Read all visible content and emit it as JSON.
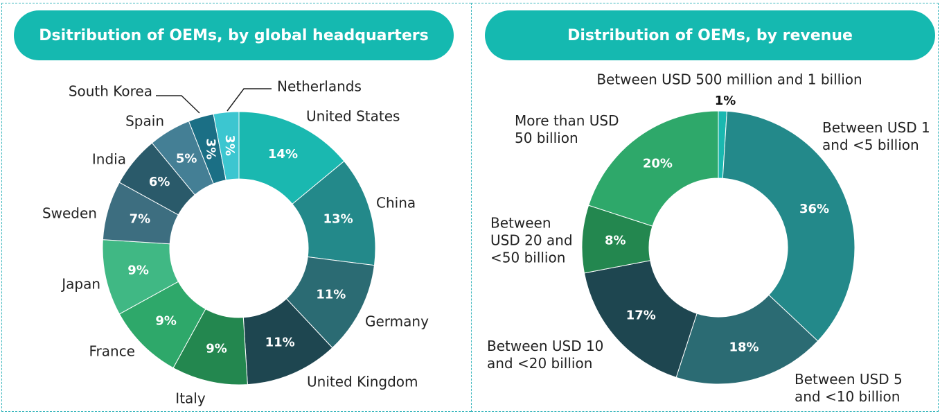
{
  "chart_data": [
    {
      "type": "donut",
      "title": "Dsitribution of OEMs, by global headquarters",
      "categories": [
        "United States",
        "China",
        "Germany",
        "United Kingdom",
        "Italy",
        "France",
        "Japan",
        "Sweden",
        "India",
        "Spain",
        "South Korea",
        "Netherlands"
      ],
      "values": [
        14,
        13,
        11,
        11,
        9,
        9,
        9,
        7,
        6,
        5,
        3,
        3
      ],
      "value_labels": [
        "14%",
        "13%",
        "11%",
        "11%",
        "9%",
        "9%",
        "9%",
        "7%",
        "6%",
        "5%",
        "3%",
        "3%"
      ],
      "colors": [
        "#1ab8b0",
        "#23898a",
        "#2b6b73",
        "#1e4650",
        "#23874f",
        "#2ea86a",
        "#40b884",
        "#3d6e80",
        "#2a5a6a",
        "#447f95",
        "#1b6f85",
        "#3cc6d0"
      ]
    },
    {
      "type": "donut",
      "title": "Distribution of OEMs, by revenue",
      "categories": [
        "Between USD 500 million and 1 billion",
        "Between USD 1 and <5 billion",
        "Between USD 5 and <10 billion",
        "Between USD 10 and <20 billion",
        "Between USD 20 and <50 billion",
        "More than USD 50 billion"
      ],
      "values": [
        1,
        36,
        18,
        17,
        8,
        20
      ],
      "value_labels": [
        "1%",
        "36%",
        "18%",
        "17%",
        "8%",
        "20%"
      ],
      "colors": [
        "#1ab8b0",
        "#23898a",
        "#2b6b73",
        "#1e4650",
        "#23874f",
        "#2ea86a"
      ]
    }
  ]
}
